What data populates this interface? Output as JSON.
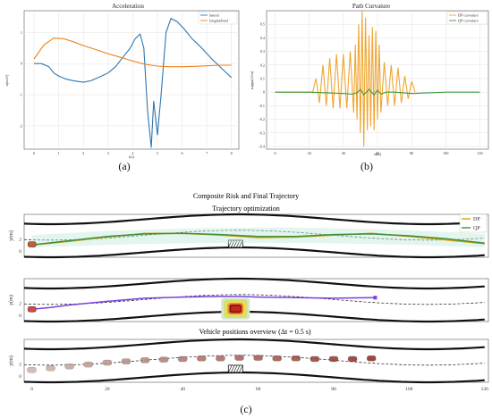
{
  "panel_labels": {
    "a": "(a)",
    "b": "(b)",
    "c": "(c)"
  },
  "composite": {
    "title": "Composite Risk and Final Trajectory",
    "subtitle": "Trajectory optimization",
    "overview_title": "Vehicle positions overview (Δt = 0.5 s)",
    "ylabel": "y(m)"
  },
  "chart_data": [
    {
      "type": "line",
      "title": "Acceleration",
      "xlabel": "t(s)",
      "ylabel": "a(m/s²)",
      "xlim": [
        -0.4,
        8.3
      ],
      "ylim": [
        -2.75,
        1.7
      ],
      "xticks": [
        0,
        1,
        2,
        3,
        4,
        5,
        6,
        7,
        8
      ],
      "yticks": [
        -2,
        -1,
        0,
        1
      ],
      "grid": true,
      "legend": "top-right",
      "series": [
        {
          "name": "lateral",
          "color": "#2e76b0",
          "x": [
            0,
            0.3,
            0.6,
            0.8,
            1,
            1.3,
            1.6,
            2,
            2.3,
            2.6,
            3,
            3.3,
            3.6,
            3.9,
            4.1,
            4.3,
            4.45,
            4.6,
            4.75,
            4.85,
            5,
            5.15,
            5.35,
            5.55,
            5.8,
            6.1,
            6.4,
            6.8,
            7.2,
            7.6,
            8
          ],
          "y": [
            0,
            0,
            -0.1,
            -0.3,
            -0.4,
            -0.5,
            -0.55,
            -0.6,
            -0.55,
            -0.45,
            -0.3,
            -0.1,
            0.2,
            0.5,
            0.8,
            0.95,
            0.5,
            -1.5,
            -2.7,
            -1.2,
            -2.3,
            -1.0,
            1.0,
            1.45,
            1.35,
            1.1,
            0.8,
            0.5,
            0.15,
            -0.15,
            -0.45
          ]
        },
        {
          "name": "longitudinal",
          "color": "#f07f17",
          "x": [
            0,
            0.4,
            0.8,
            1.2,
            1.6,
            2,
            2.5,
            3,
            3.5,
            4,
            4.5,
            5,
            5.5,
            6,
            6.5,
            7,
            7.5,
            8
          ],
          "y": [
            0.15,
            0.6,
            0.82,
            0.8,
            0.7,
            0.58,
            0.45,
            0.32,
            0.2,
            0.08,
            -0.02,
            -0.08,
            -0.1,
            -0.1,
            -0.09,
            -0.07,
            -0.05,
            -0.05
          ]
        }
      ]
    },
    {
      "type": "line",
      "title": "Path Curvature",
      "xlabel": "s(m)",
      "ylabel": "κappa(1/m)",
      "xlim": [
        -5,
        125
      ],
      "ylim": [
        -0.42,
        0.6
      ],
      "xticks": [
        0,
        20,
        40,
        60,
        80,
        100,
        120
      ],
      "yticks": [
        -0.4,
        -0.3,
        -0.2,
        -0.1,
        0.0,
        0.1,
        0.2,
        0.3,
        0.4,
        0.5
      ],
      "grid": true,
      "legend": "top-right",
      "series": [
        {
          "name": "DP curvature",
          "color": "#f0a531",
          "x": [
            0,
            22,
            24,
            26,
            28,
            30,
            32,
            34,
            36,
            38,
            40,
            42,
            44,
            46,
            47,
            48,
            49,
            50,
            51,
            52,
            53,
            54,
            55,
            56,
            57,
            58,
            59,
            60,
            61,
            62,
            64,
            66,
            68,
            70,
            72,
            74,
            76,
            78,
            80,
            82
          ],
          "y": [
            0,
            0,
            0.1,
            -0.08,
            0.2,
            -0.1,
            0.25,
            -0.12,
            0.28,
            -0.12,
            0.28,
            -0.12,
            0.3,
            -0.15,
            0.35,
            -0.2,
            0.5,
            -0.3,
            0.6,
            -0.4,
            0.55,
            -0.28,
            0.42,
            -0.25,
            0.48,
            -0.28,
            0.45,
            -0.2,
            0.35,
            -0.15,
            0.22,
            -0.1,
            0.2,
            -0.1,
            0.18,
            -0.08,
            0.12,
            -0.05,
            0.08,
            0
          ]
        },
        {
          "name": "QP curvature",
          "color": "#3c9a3c",
          "x": [
            0,
            10,
            20,
            30,
            40,
            45,
            48,
            50,
            52,
            55,
            58,
            60,
            62,
            65,
            70,
            80,
            90,
            100,
            110,
            120
          ],
          "y": [
            0,
            0,
            0,
            -0.005,
            -0.01,
            -0.015,
            -0.005,
            0.02,
            -0.02,
            0.02,
            -0.02,
            0.015,
            -0.015,
            0,
            0,
            -0.01,
            -0.005,
            0,
            0,
            0
          ]
        }
      ]
    },
    {
      "type": "line",
      "title": "Trajectory optimization",
      "ylabel": "y(m)",
      "xlim": [
        -2,
        121
      ],
      "ylim": [
        -1,
        6
      ],
      "xticks": [
        0,
        20,
        40,
        60,
        80,
        100,
        120
      ],
      "yticks": [
        0,
        2
      ],
      "legend": "top-right",
      "series": [
        {
          "name": "DP",
          "color": "#d9a514",
          "x": [
            0,
            10,
            20,
            30,
            40,
            50,
            60,
            70,
            80,
            90,
            100,
            110,
            120
          ],
          "y": [
            1,
            1.6,
            2.3,
            2.9,
            2.9,
            2.6,
            2.2,
            2.3,
            2.6,
            2.9,
            2.4,
            1.8,
            1.2
          ]
        },
        {
          "name": "QP",
          "color": "#3f8f3a",
          "x": [
            0,
            10,
            20,
            30,
            40,
            50,
            60,
            70,
            80,
            90,
            100,
            110,
            120
          ],
          "y": [
            1,
            1.7,
            2.4,
            2.8,
            2.9,
            2.7,
            2.4,
            2.4,
            2.7,
            2.8,
            2.5,
            2.0,
            1.3
          ]
        }
      ]
    },
    {
      "type": "line",
      "ylabel": "y(m)",
      "xlim": [
        -2,
        121
      ],
      "ylim": [
        -1,
        6
      ],
      "xticks": [
        0,
        20,
        40,
        60,
        80,
        100,
        120
      ],
      "yticks": [
        0,
        2
      ],
      "series": [
        {
          "color": "#7b3fe0",
          "x": [
            0,
            5,
            10,
            20,
            30,
            40,
            50,
            55,
            60,
            70,
            80,
            90,
            91
          ],
          "y": [
            1,
            1.3,
            1.7,
            2.3,
            2.8,
            3.0,
            3.1,
            3.1,
            3.0,
            2.9,
            2.8,
            2.9,
            2.9
          ]
        }
      ]
    },
    {
      "type": "scatter",
      "title": "Vehicle positions overview (Δt = 0.5 s)",
      "xlabel": "",
      "ylabel": "y(m)",
      "xlim": [
        -2,
        121
      ],
      "ylim": [
        -1,
        6
      ],
      "xticks": [
        0,
        20,
        40,
        60,
        80,
        100,
        120
      ],
      "yticks": [
        0,
        2
      ],
      "x": [
        0,
        5,
        10,
        15,
        20,
        25,
        30,
        35,
        40,
        45,
        50,
        55,
        60,
        65,
        70,
        75,
        80,
        85,
        90
      ],
      "y": [
        1.0,
        1.3,
        1.6,
        1.9,
        2.2,
        2.4,
        2.6,
        2.7,
        2.8,
        2.9,
        2.9,
        3.0,
        3.0,
        2.9,
        2.9,
        2.8,
        2.8,
        2.8,
        2.9
      ]
    }
  ]
}
